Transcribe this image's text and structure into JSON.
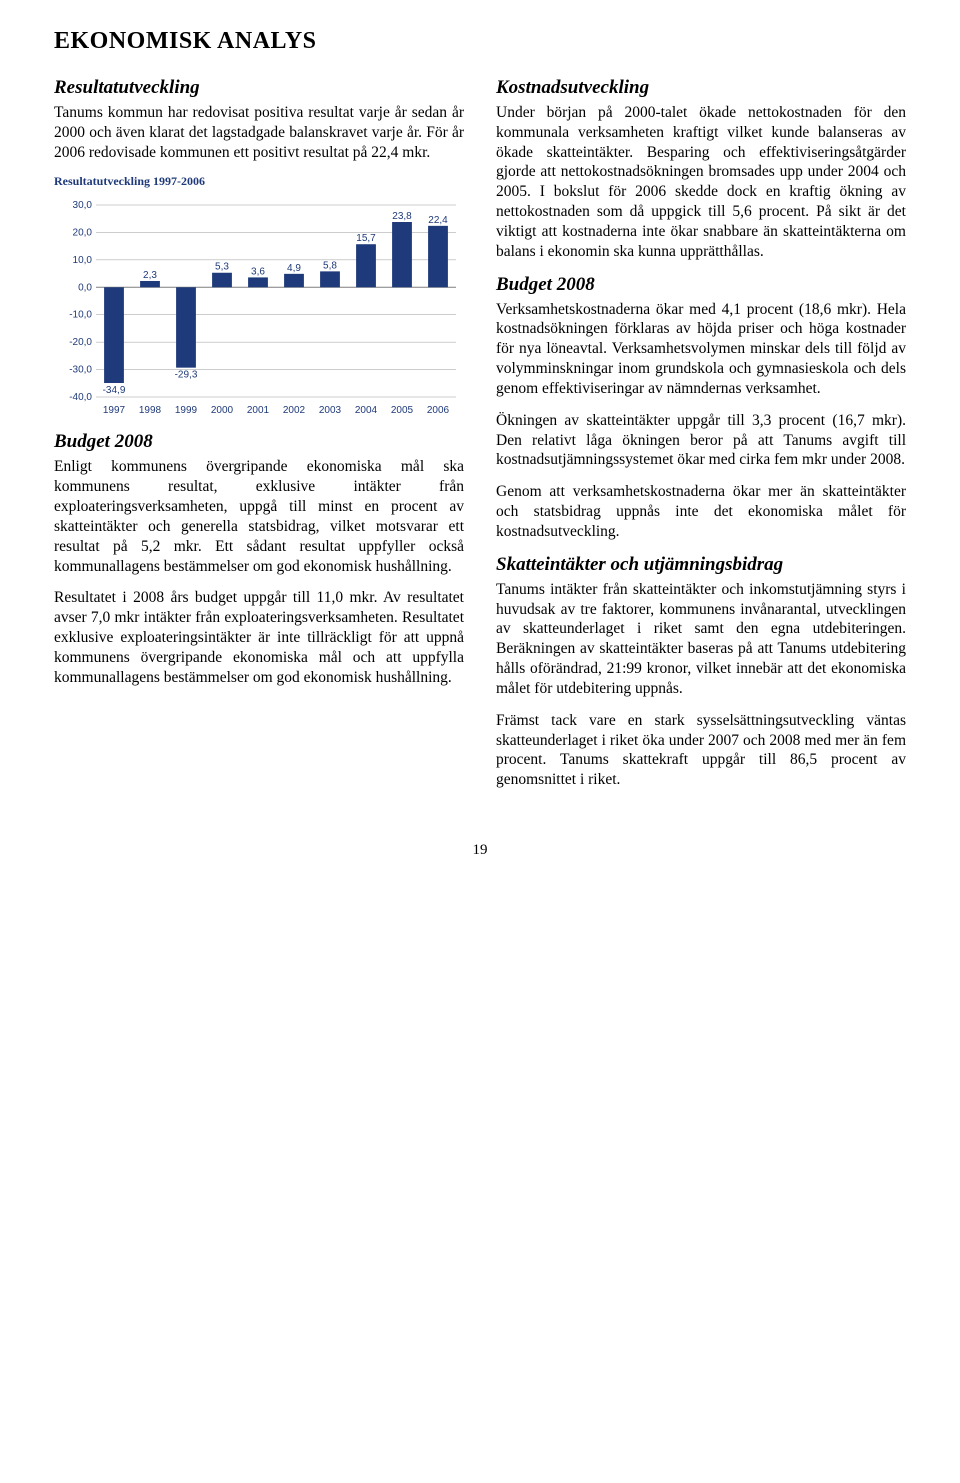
{
  "title": "EKONOMISK ANALYS",
  "left": {
    "h1": "Resultatutveckling",
    "p1": "Tanums kommun har redovisat positiva resultat varje år sedan år 2000 och även klarat det lagstadgade balanskravet varje år. För år 2006 redovisade kommunen ett positivt resultat på 22,4 mkr.",
    "chart": {
      "title": "Resultatutveckling 1997-2006",
      "type": "bar",
      "categories": [
        "1997",
        "1998",
        "1999",
        "2000",
        "2001",
        "2002",
        "2003",
        "2004",
        "2005",
        "2006"
      ],
      "values": [
        -34.9,
        2.3,
        -29.3,
        5.3,
        3.6,
        4.9,
        5.8,
        15.7,
        23.8,
        22.4
      ],
      "value_labels": [
        "-34,9",
        "2,3",
        "-29,3",
        "5,3",
        "3,6",
        "4,9",
        "5,8",
        "15,7",
        "23,8",
        "22,4"
      ],
      "bar_color": "#1f3a7a",
      "grid_color": "#9b9b9b",
      "axis_color": "#808080",
      "label_color": "#1f3a7a",
      "background_color": "#ffffff",
      "ylim": [
        -40,
        30
      ],
      "yticks": [
        -40,
        -30,
        -20,
        -10,
        0,
        10,
        20,
        30
      ],
      "ytick_labels": [
        "-40,0",
        "-30,0",
        "-20,0",
        "-10,0",
        "0,0",
        "10,0",
        "20,0",
        "30,0"
      ],
      "label_fontsize": 10,
      "bar_width": 0.55
    },
    "h2": "Budget 2008",
    "p2": "Enligt kommunens övergripande ekonomiska mål ska kommunens resultat, exklusive intäkter från exploateringsverksamheten, uppgå till minst en procent av skatteintäkter och generella statsbidrag, vilket motsvarar ett resultat på 5,2 mkr. Ett sådant resultat uppfyller också kommunallagens bestämmelser om god ekonomisk hushållning.",
    "p3": "Resultatet i 2008 års budget uppgår till 11,0 mkr. Av resultatet avser 7,0 mkr intäkter från exploateringsverksamheten. Resultatet exklusive exploateringsintäkter är inte tillräckligt för att uppnå kommunens övergripande ekonomiska mål och att uppfylla kommunallagens bestämmelser om god ekonomisk hushållning."
  },
  "right": {
    "h1": "Kostnadsutveckling",
    "p1": "Under början på 2000-talet ökade nettokostnaden för den kommunala verksamheten kraftigt vilket kunde balanseras av ökade skatteintäkter. Besparing och effektiviseringsåtgärder gjorde att nettokostnadsökningen bromsades upp under 2004 och 2005. I bokslut för 2006 skedde dock en kraftig ökning av nettokostnaden som då uppgick till 5,6 procent. På sikt är det viktigt att kostnaderna inte ökar snabbare än skatteintäkterna om balans i ekonomin ska kunna upprätthållas.",
    "h2": "Budget 2008",
    "p2": "Verksamhetskostnaderna ökar med 4,1 procent (18,6 mkr). Hela kostnadsökningen förklaras av höjda priser och höga kostnader för nya löneavtal. Verksamhetsvolymen minskar dels till följd av volymminskningar inom grundskola och gymnasieskola och dels genom effektiviseringar av nämndernas verksamhet.",
    "p3": "Ökningen av skatteintäkter uppgår till 3,3 procent (16,7 mkr). Den relativt låga ökningen beror på att Tanums avgift till kostnadsutjämningssystemet ökar med cirka fem mkr under 2008.",
    "p4": "Genom att verksamhetskostnaderna ökar mer än skatteintäkter och statsbidrag uppnås inte det ekonomiska målet för kostnadsutveckling.",
    "h3": "Skatteintäkter och utjämningsbidrag",
    "p5": "Tanums intäkter från skatteintäkter och inkomstutjämning styrs i huvudsak av tre faktorer, kommunens invånarantal, utvecklingen av skatteunderlaget i riket samt den egna utdebiteringen. Beräkningen av skatteintäkter baseras på att Tanums utdebitering hålls oförändrad, 21:99 kronor, vilket innebär att det ekonomiska målet för utdebitering uppnås.",
    "p6": "Främst tack vare en stark sysselsättningsutveckling väntas skatteunderlaget i riket öka under 2007 och 2008 med mer än fem procent. Tanums skattekraft uppgår till 86,5 procent av genomsnittet i riket."
  },
  "page_number": "19"
}
